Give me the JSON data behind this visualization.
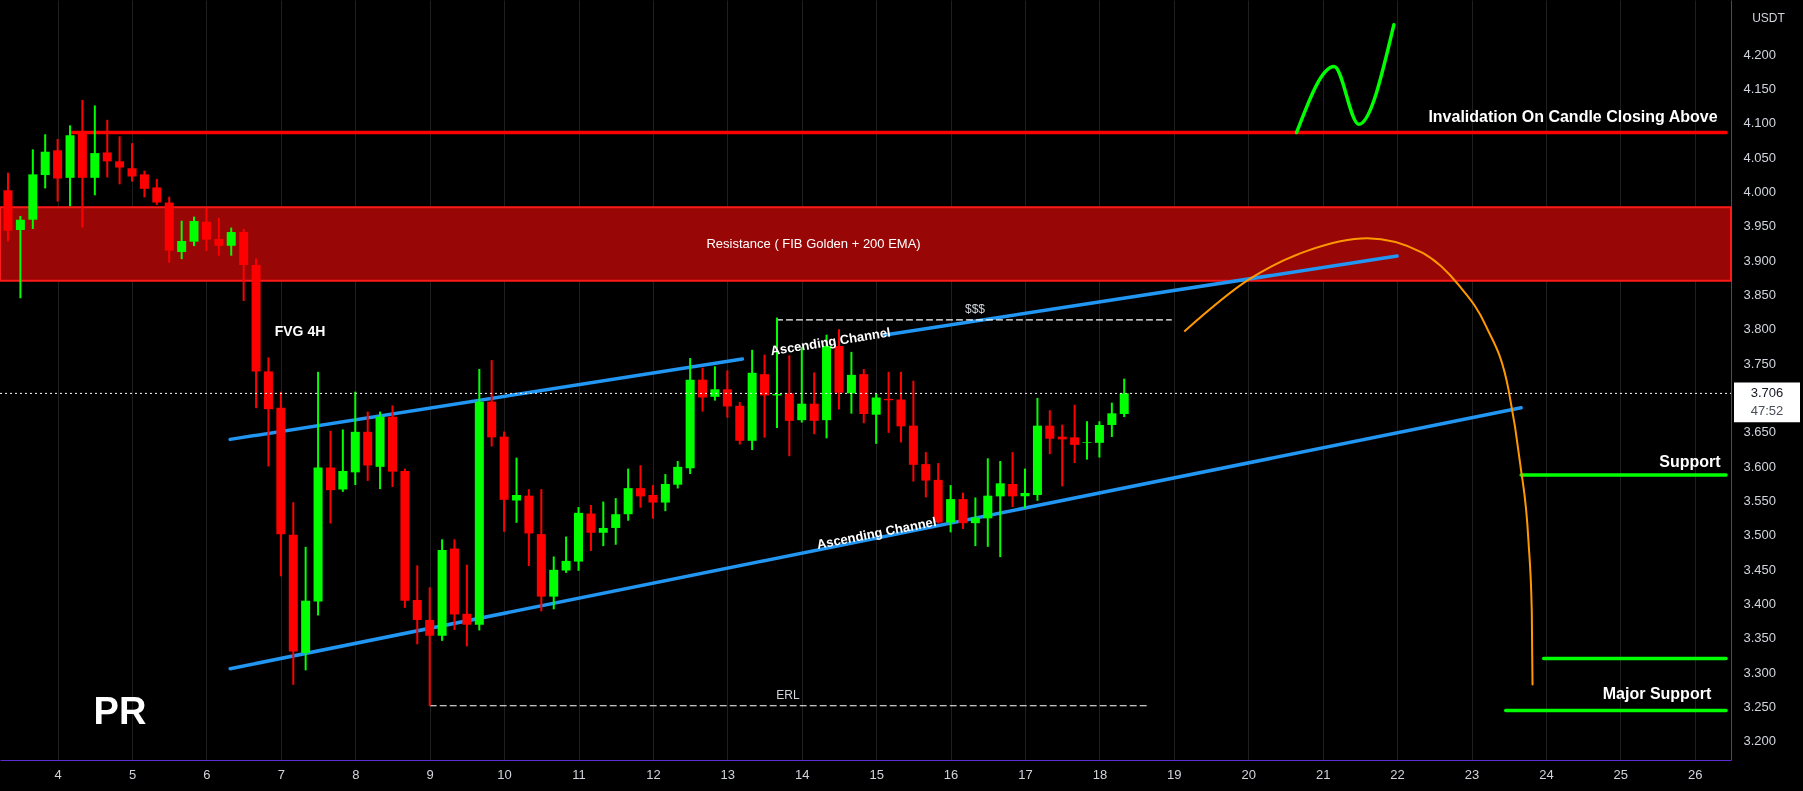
{
  "chart_data": {
    "type": "candlestick",
    "ylabel": "USDT",
    "x": [
      3.333,
      3.5,
      3.667,
      3.833,
      4,
      4.167,
      4.333,
      4.5,
      4.667,
      4.833,
      5,
      5.167,
      5.333,
      5.5,
      5.667,
      5.833,
      6,
      6.167,
      6.333,
      6.5,
      6.667,
      6.833,
      7,
      7.167,
      7.333,
      7.5,
      7.667,
      7.833,
      8,
      8.167,
      8.333,
      8.5,
      8.667,
      8.833,
      9,
      9.167,
      9.333,
      9.5,
      9.667,
      9.833,
      10,
      10.167,
      10.333,
      10.5,
      10.667,
      10.833,
      11,
      11.167,
      11.333,
      11.5,
      11.667,
      11.833,
      12,
      12.167,
      12.333,
      12.5,
      12.667,
      12.833,
      13,
      13.167,
      13.333,
      13.5,
      13.667,
      13.833,
      14,
      14.167,
      14.333,
      14.5,
      14.667,
      14.833,
      15,
      15.167,
      15.333,
      15.5,
      15.667,
      15.833,
      16,
      16.167,
      16.333,
      16.5,
      16.667,
      16.833,
      17,
      17.167,
      17.333,
      17.5,
      17.667,
      17.833,
      18,
      18.167,
      18.333
    ],
    "ohlc": [
      [
        4.002,
        4.026,
        3.929,
        3.943
      ],
      [
        3.944,
        3.963,
        3.846,
        3.959
      ],
      [
        3.959,
        4.06,
        3.947,
        4.025
      ],
      [
        4.024,
        4.082,
        4.006,
        4.058
      ],
      [
        4.06,
        4.075,
        3.987,
        4.019
      ],
      [
        4.02,
        4.095,
        3.98,
        4.082
      ],
      [
        4.085,
        4.132,
        3.949,
        4.02
      ],
      [
        4.02,
        4.124,
        3.996,
        4.056
      ],
      [
        4.057,
        4.103,
        4.022,
        4.044
      ],
      [
        4.044,
        4.079,
        4.012,
        4.035
      ],
      [
        4.034,
        4.069,
        4.016,
        4.022
      ],
      [
        4.025,
        4.029,
        3.993,
        4.004
      ],
      [
        4.006,
        4.017,
        3.982,
        3.984
      ],
      [
        3.984,
        3.991,
        3.898,
        3.914
      ],
      [
        3.912,
        3.956,
        3.903,
        3.928
      ],
      [
        3.927,
        3.962,
        3.922,
        3.957
      ],
      [
        3.956,
        3.975,
        3.915,
        3.93
      ],
      [
        3.931,
        3.96,
        3.908,
        3.921
      ],
      [
        3.921,
        3.946,
        3.908,
        3.941
      ],
      [
        3.941,
        3.944,
        3.842,
        3.893
      ],
      [
        3.893,
        3.901,
        3.686,
        3.738
      ],
      [
        3.738,
        3.757,
        3.601,
        3.683
      ],
      [
        3.685,
        3.707,
        3.441,
        3.501
      ],
      [
        3.5,
        3.546,
        3.283,
        3.33
      ],
      [
        3.328,
        3.481,
        3.304,
        3.404
      ],
      [
        3.403,
        3.736,
        3.384,
        3.598
      ],
      [
        3.598,
        3.65,
        3.518,
        3.565
      ],
      [
        3.566,
        3.652,
        3.564,
        3.593
      ],
      [
        3.591,
        3.707,
        3.574,
        3.65
      ],
      [
        3.65,
        3.678,
        3.58,
        3.601
      ],
      [
        3.599,
        3.678,
        3.568,
        3.672
      ],
      [
        3.672,
        3.687,
        3.571,
        3.592
      ],
      [
        3.593,
        3.595,
        3.395,
        3.404
      ],
      [
        3.405,
        3.454,
        3.342,
        3.376
      ],
      [
        3.376,
        3.422,
        3.252,
        3.353
      ],
      [
        3.353,
        3.492,
        3.347,
        3.478
      ],
      [
        3.48,
        3.492,
        3.363,
        3.384
      ],
      [
        3.385,
        3.455,
        3.339,
        3.369
      ],
      [
        3.369,
        3.74,
        3.362,
        3.694
      ],
      [
        3.694,
        3.753,
        3.63,
        3.642
      ],
      [
        3.643,
        3.649,
        3.506,
        3.551
      ],
      [
        3.55,
        3.611,
        3.519,
        3.558
      ],
      [
        3.557,
        3.565,
        3.456,
        3.502
      ],
      [
        3.501,
        3.565,
        3.39,
        3.41
      ],
      [
        3.41,
        3.467,
        3.393,
        3.449
      ],
      [
        3.448,
        3.496,
        3.446,
        3.462
      ],
      [
        3.461,
        3.539,
        3.449,
        3.532
      ],
      [
        3.531,
        3.542,
        3.478,
        3.503
      ],
      [
        3.503,
        3.547,
        3.485,
        3.51
      ],
      [
        3.51,
        3.552,
        3.487,
        3.53
      ],
      [
        3.53,
        3.595,
        3.522,
        3.568
      ],
      [
        3.568,
        3.6,
        3.541,
        3.556
      ],
      [
        3.558,
        3.571,
        3.525,
        3.547
      ],
      [
        3.547,
        3.587,
        3.536,
        3.574
      ],
      [
        3.573,
        3.606,
        3.569,
        3.599
      ],
      [
        3.597,
        3.756,
        3.59,
        3.726
      ],
      [
        3.726,
        3.742,
        3.681,
        3.7
      ],
      [
        3.701,
        3.744,
        3.697,
        3.712
      ],
      [
        3.712,
        3.738,
        3.672,
        3.687
      ],
      [
        3.688,
        3.692,
        3.633,
        3.637
      ],
      [
        3.637,
        3.768,
        3.625,
        3.736
      ],
      [
        3.734,
        3.761,
        3.643,
        3.703
      ],
      [
        3.703,
        3.815,
        3.657,
        3.705
      ],
      [
        3.706,
        3.76,
        3.616,
        3.666
      ],
      [
        3.667,
        3.772,
        3.665,
        3.691
      ],
      [
        3.691,
        3.735,
        3.648,
        3.666
      ],
      [
        3.667,
        3.79,
        3.642,
        3.775
      ],
      [
        3.775,
        3.798,
        3.684,
        3.707
      ],
      [
        3.706,
        3.765,
        3.678,
        3.733
      ],
      [
        3.734,
        3.74,
        3.664,
        3.676
      ],
      [
        3.675,
        3.704,
        3.634,
        3.7
      ],
      [
        3.698,
        3.736,
        3.65,
        3.696
      ],
      [
        3.697,
        3.736,
        3.636,
        3.658
      ],
      [
        3.659,
        3.723,
        3.579,
        3.602
      ],
      [
        3.603,
        3.619,
        3.556,
        3.579
      ],
      [
        3.58,
        3.603,
        3.518,
        3.518
      ],
      [
        3.518,
        3.571,
        3.505,
        3.552
      ],
      [
        3.552,
        3.56,
        3.51,
        3.517
      ],
      [
        3.517,
        3.553,
        3.485,
        3.525
      ],
      [
        3.524,
        3.61,
        3.484,
        3.557
      ],
      [
        3.556,
        3.606,
        3.469,
        3.575
      ],
      [
        3.574,
        3.619,
        3.542,
        3.556
      ],
      [
        3.556,
        3.595,
        3.54,
        3.561
      ],
      [
        3.558,
        3.698,
        3.551,
        3.659
      ],
      [
        3.659,
        3.68,
        3.619,
        3.64
      ],
      [
        3.643,
        3.659,
        3.572,
        3.639
      ],
      [
        3.642,
        3.688,
        3.606,
        3.631
      ],
      [
        3.634,
        3.664,
        3.611,
        3.635
      ],
      [
        3.634,
        3.664,
        3.614,
        3.66
      ],
      [
        3.66,
        3.691,
        3.644,
        3.677
      ],
      [
        3.676,
        3.726,
        3.673,
        3.706
      ]
    ],
    "colors": [
      "#ff0000",
      "#00ff00",
      "#00ff00",
      "#00ff00",
      "#ff0000",
      "#00ff00",
      "#ff0000",
      "#00ff00",
      "#ff0000",
      "#ff0000",
      "#ff0000",
      "#ff0000",
      "#ff0000",
      "#ff0000",
      "#00ff00",
      "#00ff00",
      "#ff0000",
      "#ff0000",
      "#00ff00",
      "#ff0000",
      "#ff0000",
      "#ff0000",
      "#ff0000",
      "#ff0000",
      "#00ff00",
      "#00ff00",
      "#ff0000",
      "#00ff00",
      "#00ff00",
      "#ff0000",
      "#00ff00",
      "#ff0000",
      "#ff0000",
      "#ff0000",
      "#ff0000",
      "#00ff00",
      "#ff0000",
      "#ff0000",
      "#00ff00",
      "#ff0000",
      "#ff0000",
      "#00ff00",
      "#ff0000",
      "#ff0000",
      "#00ff00",
      "#00ff00",
      "#00ff00",
      "#ff0000",
      "#00ff00",
      "#00ff00",
      "#00ff00",
      "#ff0000",
      "#ff0000",
      "#00ff00",
      "#00ff00",
      "#00ff00",
      "#ff0000",
      "#00ff00",
      "#ff0000",
      "#ff0000",
      "#00ff00",
      "#ff0000",
      "#00ff00",
      "#ff0000",
      "#00ff00",
      "#ff0000",
      "#00ff00",
      "#ff0000",
      "#00ff00",
      "#ff0000",
      "#00ff00",
      "#ff0000",
      "#ff0000",
      "#ff0000",
      "#ff0000",
      "#ff0000",
      "#00ff00",
      "#ff0000",
      "#00ff00",
      "#00ff00",
      "#00ff00",
      "#ff0000",
      "#00ff00",
      "#00ff00",
      "#ff0000",
      "#ff0000",
      "#ff0000",
      "#00ff00",
      "#00ff00",
      "#00ff00",
      "#00ff00"
    ],
    "series": [
      {
        "type": "line",
        "color": "#ff0000",
        "x": [
          4.19,
          26.42
        ],
        "values": [
          4.086,
          4.086
        ]
      },
      {
        "type": "line",
        "color": "#2196f3",
        "x": [
          6.319,
          13.202
        ],
        "values": [
          3.639,
          3.756
        ]
      },
      {
        "type": "line",
        "color": "#2196f3",
        "x": [
          15.116,
          22.0
        ],
        "values": [
          3.791,
          3.906
        ]
      },
      {
        "type": "line",
        "color": "#2196f3",
        "x": [
          6.319,
          23.667
        ],
        "values": [
          3.305,
          3.685
        ]
      },
      {
        "type": "line",
        "color": "#ffffff",
        "line_style": "dashed",
        "x": [
          13.66,
          18.966
        ],
        "values": [
          3.813,
          3.813
        ]
      },
      {
        "type": "line",
        "color": "#ffffff",
        "line_style": "dashed",
        "x": [
          9.007,
          18.66
        ],
        "values": [
          3.251,
          3.251
        ]
      },
      {
        "type": "line",
        "color": "#00ff00",
        "x": [
          23.667,
          26.42
        ],
        "values": [
          3.587,
          3.587
        ]
      },
      {
        "type": "line",
        "color": "#00ff00",
        "x": [
          23.97,
          26.42
        ],
        "values": [
          3.32,
          3.32
        ]
      },
      {
        "type": "line",
        "color": "#00ff00",
        "x": [
          23.46,
          26.42
        ],
        "values": [
          3.244,
          3.244
        ]
      },
      {
        "type": "line",
        "color": "#00ff00",
        "x": [
          20.65,
          21.155,
          21.485,
          21.957
        ],
        "values": [
          4.086,
          4.182,
          4.098,
          4.243
        ]
      },
      {
        "type": "line",
        "color": "#ff9800",
        "x": [
          19.148,
          20.01,
          20.8,
          21.6,
          22.337,
          22.826,
          23.195,
          23.5,
          23.655,
          23.766,
          23.81,
          23.82
        ],
        "values": [
          3.797,
          3.872,
          3.914,
          3.932,
          3.911,
          3.864,
          3.804,
          3.71,
          3.603,
          3.49,
          3.389,
          3.282
        ]
      }
    ],
    "bands": [
      {
        "axis": "y",
        "from": 3.87,
        "to": 3.977,
        "label": "Resistance ( FIB Golden + 200 EMA)",
        "color": "#990606"
      }
    ],
    "ref_lines": [
      {
        "axis": "y",
        "value": 3.706,
        "label": "3.706",
        "color": "#ffffff",
        "line_style": "dotted"
      }
    ],
    "annotations": [
      "Invalidation On Candle Closing Above",
      "FVG 4H",
      {
        "text": "Ascending Channel",
        "x": 14.387,
        "y": 3.781
      },
      {
        "text": "Ascending Channel",
        "x": 15.006,
        "y": 3.502
      },
      "$$$",
      "ERL",
      "Support",
      "Major Support",
      "47:52",
      "PR"
    ],
    "xlim": [
      3.293,
      26.42
    ],
    "xticks": [
      4,
      5,
      6,
      7,
      8,
      9,
      10,
      11,
      12,
      13,
      14,
      15,
      16,
      17,
      18,
      19,
      20,
      21,
      22,
      23,
      24,
      25,
      26
    ],
    "ylim": [
      3.172,
      4.279
    ],
    "yticks": [
      {
        "value": 3.2,
        "label": "3.200"
      },
      {
        "value": 3.25,
        "label": "3.250"
      },
      {
        "value": 3.3,
        "label": "3.300"
      },
      {
        "value": 3.35,
        "label": "3.350"
      },
      {
        "value": 3.4,
        "label": "3.400"
      },
      {
        "value": 3.45,
        "label": "3.450"
      },
      {
        "value": 3.5,
        "label": "3.500"
      },
      {
        "value": 3.55,
        "label": "3.550"
      },
      {
        "value": 3.6,
        "label": "3.600"
      },
      {
        "value": 3.65,
        "label": "3.650"
      },
      {
        "value": 3.75,
        "label": "3.750"
      },
      {
        "value": 3.8,
        "label": "3.800"
      },
      {
        "value": 3.85,
        "label": "3.850"
      },
      {
        "value": 3.9,
        "label": "3.900"
      },
      {
        "value": 3.95,
        "label": "3.950"
      },
      {
        "value": 4.0,
        "label": "4.000"
      },
      {
        "value": 4.05,
        "label": "4.050"
      },
      {
        "value": 4.1,
        "label": "4.100"
      },
      {
        "value": 4.15,
        "label": "4.150"
      },
      {
        "value": 4.2,
        "label": "4.200"
      }
    ],
    "grid": "x"
  }
}
